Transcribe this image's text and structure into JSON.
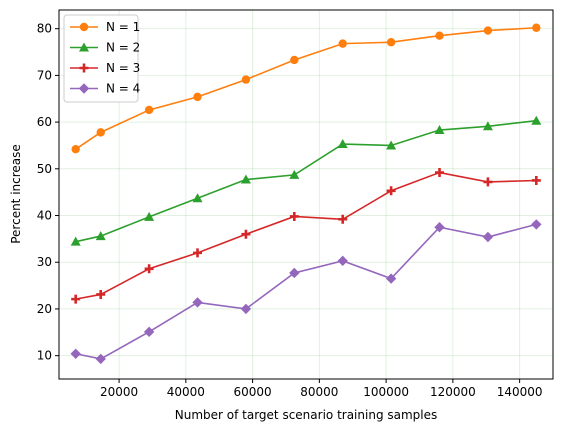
{
  "chart_data": {
    "type": "line",
    "xlabel": "Number of target scenario training samples",
    "ylabel": "Percent increase",
    "xlim": [
      2000,
      150000
    ],
    "ylim": [
      5,
      84
    ],
    "xticks": [
      20000,
      40000,
      60000,
      80000,
      100000,
      120000,
      140000
    ],
    "yticks": [
      10,
      20,
      30,
      40,
      50,
      60,
      70,
      80
    ],
    "xtick_labels": [
      "20000",
      "40000",
      "60000",
      "80000",
      "100000",
      "120000",
      "140000"
    ],
    "ytick_labels": [
      "10",
      "20",
      "30",
      "40",
      "50",
      "60",
      "70",
      "80"
    ],
    "grid": true,
    "legend_position": "upper-left",
    "x": [
      7000,
      14500,
      29000,
      43500,
      58000,
      72500,
      87000,
      101500,
      116000,
      130500,
      145000
    ],
    "series": [
      {
        "name": "N = 1",
        "color": "#ff7f0e",
        "marker": "circle",
        "values": [
          54.2,
          57.8,
          62.6,
          65.4,
          69.1,
          73.3,
          76.8,
          77.1,
          78.5,
          79.6,
          80.2
        ]
      },
      {
        "name": "N = 2",
        "color": "#2ca02c",
        "marker": "triangle",
        "values": [
          34.4,
          35.6,
          39.7,
          43.7,
          47.7,
          48.7,
          55.3,
          55.0,
          58.3,
          59.1,
          60.3
        ]
      },
      {
        "name": "N = 3",
        "color": "#d62728",
        "marker": "plus",
        "values": [
          22.1,
          23.1,
          28.6,
          32.0,
          36.0,
          39.8,
          39.2,
          45.3,
          49.2,
          47.2,
          47.5
        ]
      },
      {
        "name": "N = 4",
        "color": "#9467bd",
        "marker": "diamond",
        "values": [
          10.4,
          9.3,
          15.1,
          21.4,
          20.0,
          27.7,
          30.3,
          26.5,
          37.5,
          35.4,
          38.1
        ]
      }
    ]
  }
}
